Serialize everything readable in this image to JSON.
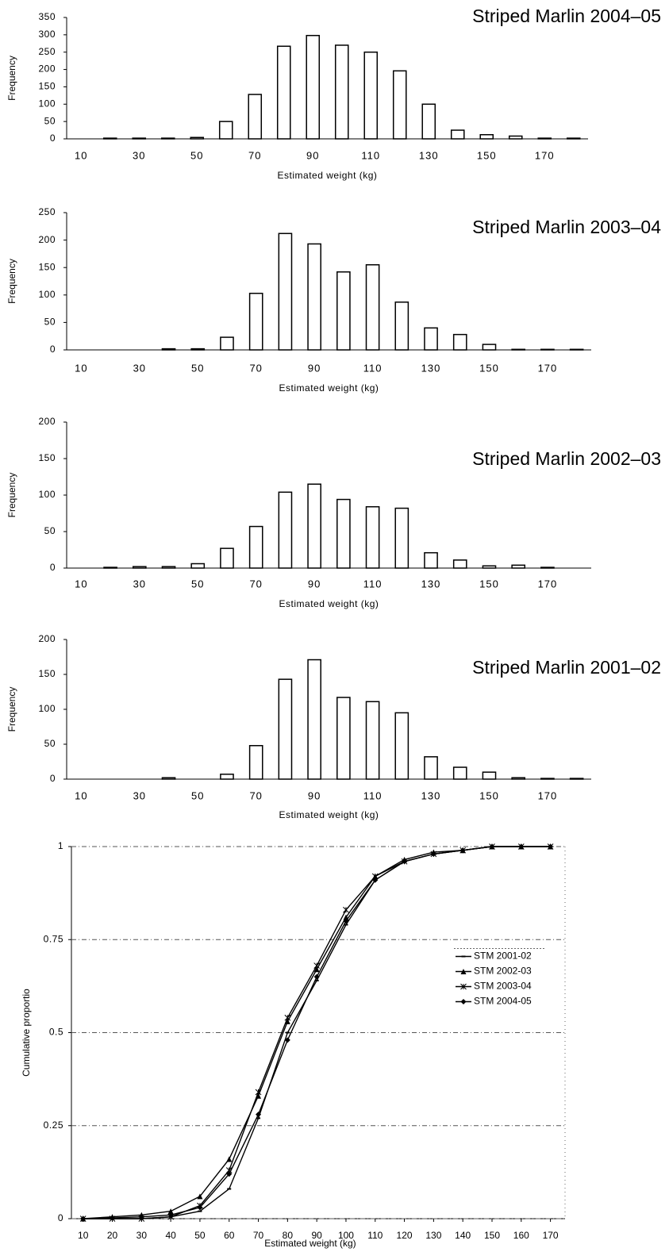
{
  "chart_data": [
    {
      "type": "bar",
      "title": "Striped Marlin 2004–05",
      "xlabel": "Estimated weight (kg)",
      "ylabel": "Frequency",
      "categories": [
        "10",
        null,
        "30",
        null,
        "50",
        null,
        "70",
        null,
        "90",
        null,
        "110",
        null,
        "130",
        null,
        "150",
        null,
        "170",
        null
      ],
      "values": [
        0,
        2,
        2,
        2,
        4,
        50,
        128,
        267,
        298,
        270,
        250,
        196,
        100,
        25,
        12,
        8,
        2,
        2
      ],
      "color": "#ffffff",
      "edgecolor": "#000000",
      "ylim": [
        0,
        350
      ],
      "yticks": [
        0,
        50,
        100,
        150,
        200,
        250,
        300,
        350
      ],
      "grid": false
    },
    {
      "type": "bar",
      "title": "Striped Marlin 2003–04",
      "xlabel": "Estimated weight (kg)",
      "ylabel": "Frequency",
      "categories": [
        "10",
        null,
        "30",
        null,
        "50",
        null,
        "70",
        null,
        "90",
        null,
        "110",
        null,
        "130",
        null,
        "150",
        null,
        "170",
        null
      ],
      "values": [
        0,
        0,
        0,
        2,
        2,
        23,
        103,
        212,
        193,
        142,
        155,
        87,
        40,
        28,
        10,
        1,
        1,
        1
      ],
      "color": "#ffffff",
      "edgecolor": "#000000",
      "ylim": [
        0,
        250
      ],
      "yticks": [
        0,
        50,
        100,
        150,
        200,
        250
      ],
      "grid": false
    },
    {
      "type": "bar",
      "title": "Striped Marlin 2002–03",
      "xlabel": "Estimated weight (kg)",
      "ylabel": "Frequency",
      "categories": [
        "10",
        null,
        "30",
        null,
        "50",
        null,
        "70",
        null,
        "90",
        null,
        "110",
        null,
        "130",
        null,
        "150",
        null,
        "170",
        null
      ],
      "values": [
        0,
        1,
        2,
        2,
        6,
        27,
        57,
        104,
        115,
        94,
        84,
        82,
        21,
        11,
        3,
        4,
        1,
        0
      ],
      "color": "#ffffff",
      "edgecolor": "#000000",
      "ylim": [
        0,
        200
      ],
      "yticks": [
        0,
        50,
        100,
        150,
        200
      ],
      "grid": false
    },
    {
      "type": "bar",
      "title": "Striped Marlin 2001–02",
      "xlabel": "Estimated weight (kg)",
      "ylabel": "Frequency",
      "categories": [
        "10",
        null,
        "30",
        null,
        "50",
        null,
        "70",
        null,
        "90",
        null,
        "110",
        null,
        "130",
        null,
        "150",
        null,
        "170",
        null
      ],
      "values": [
        0,
        0,
        0,
        2,
        0,
        7,
        48,
        143,
        171,
        117,
        111,
        95,
        32,
        17,
        10,
        2,
        1,
        1
      ],
      "color": "#ffffff",
      "edgecolor": "#000000",
      "ylim": [
        0,
        200
      ],
      "yticks": [
        0,
        50,
        100,
        150,
        200
      ],
      "grid": false
    },
    {
      "type": "line",
      "xlabel": "Estimated weight (kg)",
      "ylabel": "Cumulative proportio",
      "x": [
        10,
        20,
        30,
        40,
        50,
        60,
        70,
        80,
        90,
        100,
        110,
        120,
        130,
        140,
        150,
        160,
        170
      ],
      "xlim": [
        6,
        175
      ],
      "xticks": [
        10,
        20,
        30,
        40,
        50,
        60,
        70,
        80,
        90,
        100,
        110,
        120,
        130,
        140,
        150,
        160,
        170
      ],
      "ylim": [
        0,
        1
      ],
      "yticks": [
        0,
        0.25,
        0.5,
        0.75,
        1
      ],
      "grid": true,
      "legend": "center right",
      "series": [
        {
          "name": "STM 2001-02",
          "color": "#000000",
          "marker": "dash",
          "values": [
            0,
            0,
            0,
            0.005,
            0.02,
            0.08,
            0.27,
            0.5,
            0.64,
            0.79,
            0.91,
            0.96,
            0.98,
            0.99,
            1,
            1,
            1
          ]
        },
        {
          "name": "STM 2002-03",
          "color": "#000000",
          "marker": "triangle",
          "values": [
            0,
            0.005,
            0.01,
            0.02,
            0.06,
            0.16,
            0.33,
            0.53,
            0.67,
            0.81,
            0.92,
            0.965,
            0.985,
            0.99,
            1,
            1,
            1
          ]
        },
        {
          "name": "STM 2003-04",
          "color": "#000000",
          "marker": "star",
          "values": [
            0,
            0,
            0,
            0.005,
            0.035,
            0.13,
            0.34,
            0.54,
            0.68,
            0.83,
            0.92,
            0.96,
            0.98,
            0.99,
            1,
            1,
            1
          ]
        },
        {
          "name": "STM 2004-05",
          "color": "#000000",
          "marker": "diamond",
          "values": [
            0,
            0.002,
            0.005,
            0.01,
            0.03,
            0.12,
            0.28,
            0.48,
            0.65,
            0.8,
            0.91,
            0.96,
            0.98,
            0.99,
            1,
            1,
            1
          ]
        }
      ]
    }
  ]
}
